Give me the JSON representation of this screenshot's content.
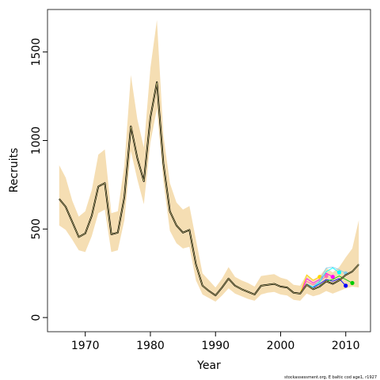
{
  "chart_data": {
    "type": "line",
    "title": "",
    "xlabel": "Year",
    "ylabel": "Recruits",
    "xlim": [
      1964.2,
      2013.8
    ],
    "ylim": [
      -80,
      1740
    ],
    "xticks": [
      1970,
      1980,
      1990,
      2000,
      2010
    ],
    "yticks": [
      0,
      500,
      1000,
      1500
    ],
    "grid": false,
    "legend": "none",
    "footnote": "stockassessment.org, E baltic cod age1, r1927",
    "colors": {
      "band": "#f5deb3",
      "main": "#000000",
      "inner": "#f0e68c"
    },
    "main_series": {
      "x": [
        1966,
        1967,
        1968,
        1969,
        1970,
        1971,
        1972,
        1973,
        1974,
        1975,
        1976,
        1977,
        1978,
        1979,
        1980,
        1981,
        1982,
        1983,
        1984,
        1985,
        1986,
        1987,
        1988,
        1989,
        1990,
        1991,
        1992,
        1993,
        1994,
        1995,
        1996,
        1997,
        1998,
        1999,
        2000,
        2001,
        2002,
        2003,
        2004,
        2005,
        2006,
        2007,
        2008,
        2009,
        2010,
        2011,
        2012
      ],
      "y": [
        670,
        625,
        540,
        455,
        475,
        575,
        740,
        760,
        470,
        480,
        680,
        1080,
        900,
        770,
        1130,
        1330,
        870,
        600,
        520,
        480,
        495,
        300,
        180,
        150,
        125,
        170,
        220,
        180,
        160,
        145,
        130,
        180,
        185,
        190,
        175,
        170,
        140,
        135,
        185,
        160,
        175,
        205,
        190,
        210,
        240,
        260,
        300
      ],
      "lower": [
        520,
        495,
        440,
        380,
        370,
        460,
        590,
        610,
        370,
        380,
        550,
        940,
        780,
        640,
        990,
        1180,
        770,
        490,
        420,
        390,
        400,
        210,
        130,
        110,
        90,
        125,
        165,
        135,
        120,
        105,
        95,
        130,
        140,
        145,
        130,
        125,
        100,
        95,
        135,
        120,
        130,
        150,
        135,
        150,
        165,
        175,
        170
      ],
      "upper": [
        860,
        790,
        660,
        570,
        600,
        720,
        920,
        950,
        590,
        600,
        860,
        1370,
        1120,
        960,
        1410,
        1680,
        1030,
        760,
        650,
        610,
        630,
        440,
        250,
        210,
        170,
        220,
        285,
        230,
        210,
        195,
        175,
        235,
        240,
        245,
        225,
        215,
        185,
        180,
        245,
        215,
        235,
        280,
        255,
        285,
        340,
        390,
        550
      ]
    },
    "retro_series": [
      {
        "color": "#ff00ff",
        "x": [
          2003,
          2004,
          2005,
          2006,
          2007,
          2008
        ],
        "y": [
          135,
          220,
          195,
          215,
          250,
          230
        ]
      },
      {
        "color": "#ff69b4",
        "x": [
          2003,
          2004,
          2005,
          2006,
          2007
        ],
        "y": [
          135,
          205,
          185,
          205,
          235
        ]
      },
      {
        "color": "#ffd700",
        "x": [
          2003,
          2004,
          2005,
          2006
        ],
        "y": [
          135,
          240,
          210,
          230
        ]
      },
      {
        "color": "#00ffff",
        "x": [
          2004,
          2005,
          2006,
          2007,
          2008,
          2009
        ],
        "y": [
          190,
          170,
          200,
          260,
          280,
          255
        ]
      },
      {
        "color": "#87ceeb",
        "x": [
          2004,
          2005,
          2006,
          2007,
          2008,
          2009,
          2010
        ],
        "y": [
          190,
          175,
          210,
          280,
          285,
          270,
          250
        ]
      },
      {
        "color": "#0000ff",
        "x": [
          2005,
          2006,
          2007,
          2008,
          2009,
          2010
        ],
        "y": [
          170,
          190,
          215,
          205,
          220,
          180
        ]
      },
      {
        "color": "#00cc00",
        "x": [
          2006,
          2007,
          2008,
          2009,
          2010,
          2011
        ],
        "y": [
          180,
          205,
          215,
          235,
          215,
          195
        ]
      }
    ]
  }
}
